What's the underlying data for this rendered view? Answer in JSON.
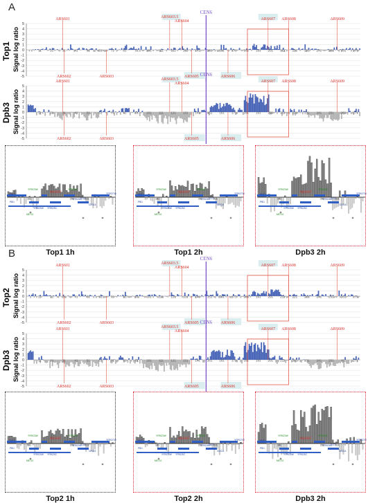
{
  "panels": [
    {
      "letter": "A",
      "tracks": [
        {
          "protein": "Top1",
          "ylabel": "Signal log ratio",
          "signal": "weak"
        },
        {
          "protein": "Dpb3",
          "ylabel": "Signal log ratio",
          "signal": "strong"
        }
      ],
      "zooms": [
        {
          "caption": "Top1 1h",
          "level": 0.35
        },
        {
          "caption": "Top1 2h",
          "level": 0.45
        },
        {
          "caption": "Dpb3 2h",
          "level": 1.0
        }
      ]
    },
    {
      "letter": "B",
      "tracks": [
        {
          "protein": "Top2",
          "ylabel": "Signal log ratio",
          "signal": "weak"
        },
        {
          "protein": "Dpb3",
          "ylabel": "Signal log ratio",
          "signal": "strong"
        }
      ],
      "zooms": [
        {
          "caption": "Top2 1h",
          "level": 0.38
        },
        {
          "caption": "Top2 2h",
          "level": 0.42
        },
        {
          "caption": "Dpb3 2h",
          "level": 0.95
        }
      ]
    }
  ],
  "chart_data": {
    "type": "bar",
    "yticks": [
      5,
      4,
      3,
      2,
      1,
      0,
      -1,
      -2,
      -3,
      -4,
      -5
    ],
    "ylim": [
      -5,
      5
    ],
    "x_ticks": [
      11,
      21,
      31,
      41,
      51,
      61,
      71,
      81,
      91,
      101,
      111,
      121,
      131,
      141,
      151,
      161,
      171,
      181,
      191,
      201,
      211,
      221,
      231,
      241,
      251,
      261,
      271
    ],
    "xlim": [
      0,
      275
    ],
    "centromere": {
      "label": "CEN6",
      "position": 148
    },
    "ars_above": [
      {
        "label": "ARS601",
        "position": 30
      },
      {
        "label": "ARS603.5",
        "position": 118
      },
      {
        "label": "ARS604",
        "position": 128
      },
      {
        "label": "ARS607",
        "position": 199
      },
      {
        "label": "ARS608",
        "position": 216
      },
      {
        "label": "ARS609",
        "position": 256
      }
    ],
    "ars_below": [
      {
        "label": "ARS602",
        "position": 31
      },
      {
        "label": "ARS603",
        "position": 66
      },
      {
        "label": "ARS605",
        "position": 136
      },
      {
        "label": "ARS606",
        "position": 166
      }
    ],
    "zoom_x_ticks": [
      181,
      201,
      211
    ],
    "zoom_center_label": "ARS607",
    "zoom_gene_labels": [
      "YFR023W",
      "YFR024C",
      "PMT1",
      "PBI1",
      "YFR020W",
      "YFR025C",
      "YFR026C",
      "CDC14",
      "ECO1",
      "YFR027W",
      "MET10",
      "YFR028C",
      "YFR029C",
      "YFR030W",
      "YFR031C",
      "SMC2",
      "YFR032C",
      "YFR032C-A"
    ]
  }
}
